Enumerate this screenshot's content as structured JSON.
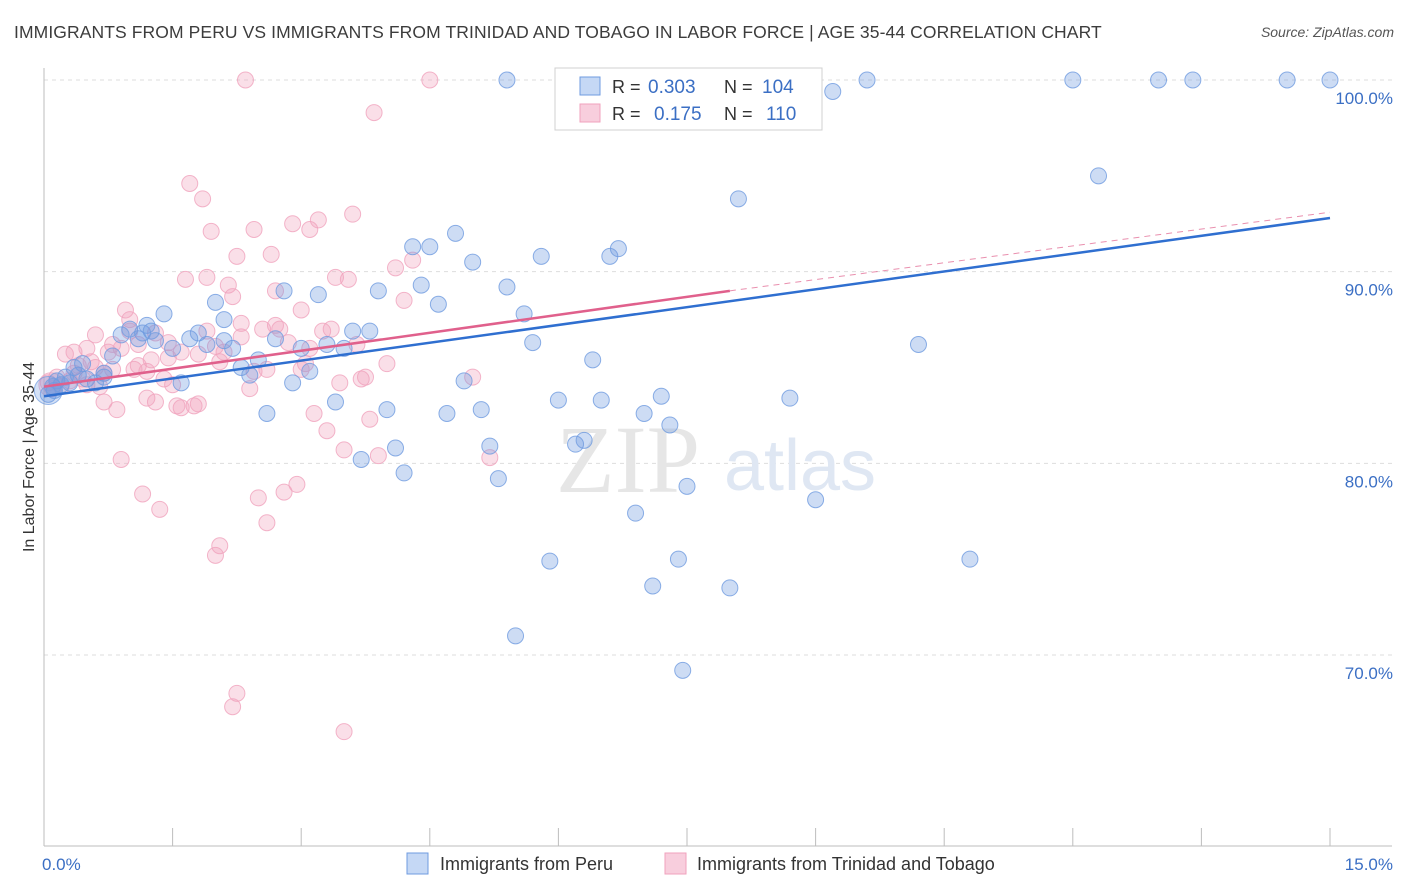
{
  "title": "IMMIGRANTS FROM PERU VS IMMIGRANTS FROM TRINIDAD AND TOBAGO IN LABOR FORCE | AGE 35-44 CORRELATION CHART",
  "source": "Source: ZipAtlas.com",
  "watermark": {
    "zip": "ZIP",
    "atlas": "atlas"
  },
  "colors": {
    "peru": "#6f9be0",
    "peru_line": "#2f6fd0",
    "tt": "#f0a2bd",
    "tt_line": "#e0608c",
    "axis_text": "#3b6fc4",
    "grid": "#dddddd"
  },
  "legend": {
    "rows": [
      {
        "r_label": "R =",
        "r_value": "0.303",
        "n_label": "N =",
        "n_value": "104"
      },
      {
        "r_label": "R =",
        "r_value": "0.175",
        "n_label": "N =",
        "n_value": "110"
      }
    ]
  },
  "chart_data": {
    "type": "scatter",
    "title": "IMMIGRANTS FROM PERU VS IMMIGRANTS FROM TRINIDAD AND TOBAGO IN LABOR FORCE | AGE 35-44 CORRELATION CHART",
    "xlabel": "",
    "ylabel": "In Labor Force | Age 35-44",
    "xlim": [
      0,
      15
    ],
    "ylim": [
      59.5,
      101.5
    ],
    "x_tick_labels": [
      "0.0%",
      "15.0%"
    ],
    "y_tick_labels": [
      "100.0%",
      "90.0%",
      "80.0%",
      "70.0%"
    ],
    "y_ticks": [
      100,
      90,
      80,
      70
    ],
    "grid": true,
    "legend_position": "top-center",
    "series": [
      {
        "name": "Immigrants from Peru",
        "r": 0.303,
        "n": 104,
        "trend": {
          "x": [
            0.0,
            15.0
          ],
          "y": [
            83.5,
            92.8
          ],
          "style": "solid"
        },
        "points": [
          [
            0.05,
            83.6
          ],
          [
            0.1,
            84.0
          ],
          [
            0.12,
            83.8
          ],
          [
            0.15,
            84.3
          ],
          [
            0.2,
            84.1
          ],
          [
            0.25,
            84.5
          ],
          [
            0.3,
            84.2
          ],
          [
            0.35,
            85.0
          ],
          [
            0.4,
            84.6
          ],
          [
            0.45,
            85.2
          ],
          [
            0.5,
            84.4
          ],
          [
            0.6,
            84.2
          ],
          [
            0.7,
            84.7
          ],
          [
            0.8,
            85.6
          ],
          [
            0.9,
            86.7
          ],
          [
            1.0,
            87.0
          ],
          [
            1.1,
            86.5
          ],
          [
            1.15,
            86.8
          ],
          [
            1.2,
            87.2
          ],
          [
            1.3,
            86.4
          ],
          [
            1.4,
            87.8
          ],
          [
            1.5,
            86.0
          ],
          [
            1.6,
            84.2
          ],
          [
            1.7,
            86.5
          ],
          [
            1.8,
            86.8
          ],
          [
            1.9,
            86.2
          ],
          [
            2.0,
            88.4
          ],
          [
            2.1,
            87.5
          ],
          [
            2.2,
            86.0
          ],
          [
            2.3,
            85.0
          ],
          [
            2.4,
            84.6
          ],
          [
            2.5,
            85.4
          ],
          [
            2.6,
            82.6
          ],
          [
            2.7,
            86.5
          ],
          [
            2.8,
            89.0
          ],
          [
            2.9,
            84.2
          ],
          [
            3.0,
            86.0
          ],
          [
            3.1,
            84.8
          ],
          [
            3.2,
            88.8
          ],
          [
            3.3,
            86.2
          ],
          [
            3.4,
            83.2
          ],
          [
            3.5,
            86.0
          ],
          [
            3.6,
            86.9
          ],
          [
            3.7,
            80.2
          ],
          [
            3.8,
            86.9
          ],
          [
            3.9,
            89.0
          ],
          [
            4.0,
            82.8
          ],
          [
            4.1,
            80.8
          ],
          [
            4.2,
            79.5
          ],
          [
            4.3,
            91.3
          ],
          [
            4.4,
            89.3
          ],
          [
            4.5,
            91.3
          ],
          [
            4.6,
            88.3
          ],
          [
            4.7,
            82.6
          ],
          [
            4.8,
            92.0
          ],
          [
            4.9,
            84.3
          ],
          [
            5.0,
            90.5
          ],
          [
            5.1,
            82.8
          ],
          [
            5.2,
            80.9
          ],
          [
            5.3,
            79.2
          ],
          [
            5.4,
            89.2
          ],
          [
            5.5,
            71.0
          ],
          [
            5.6,
            87.8
          ],
          [
            5.7,
            86.3
          ],
          [
            5.8,
            90.8
          ],
          [
            5.9,
            74.9
          ],
          [
            6.0,
            83.3
          ],
          [
            6.1,
            97.9
          ],
          [
            6.2,
            81.0
          ],
          [
            6.3,
            81.2
          ],
          [
            6.4,
            85.4
          ],
          [
            6.5,
            83.3
          ],
          [
            6.6,
            90.8
          ],
          [
            6.7,
            91.2
          ],
          [
            6.9,
            77.4
          ],
          [
            7.0,
            82.6
          ],
          [
            7.1,
            73.6
          ],
          [
            7.2,
            83.5
          ],
          [
            7.3,
            82.0
          ],
          [
            7.4,
            75.0
          ],
          [
            7.45,
            69.2
          ],
          [
            7.5,
            78.8
          ],
          [
            7.6,
            100.0
          ],
          [
            7.8,
            100.0
          ],
          [
            8.0,
            73.5
          ],
          [
            8.1,
            93.8
          ],
          [
            8.3,
            100.0
          ],
          [
            8.5,
            99.5
          ],
          [
            8.7,
            83.4
          ],
          [
            9.0,
            78.1
          ],
          [
            9.2,
            99.4
          ],
          [
            9.6,
            100.0
          ],
          [
            10.2,
            86.2
          ],
          [
            10.8,
            75.0
          ],
          [
            12.0,
            100.0
          ],
          [
            12.3,
            95.0
          ],
          [
            13.0,
            100.0
          ],
          [
            13.4,
            100.0
          ],
          [
            14.5,
            100.0
          ],
          [
            15.0,
            100.0
          ],
          [
            5.4,
            100.0
          ],
          [
            2.1,
            86.4
          ],
          [
            0.7,
            84.5
          ],
          [
            1.25,
            86.9
          ]
        ]
      },
      {
        "name": "Immigrants from Trinidad and Tobago",
        "r": 0.175,
        "n": 110,
        "trend": {
          "x": [
            0.0,
            8.0
          ],
          "y": [
            84.0,
            89.0
          ],
          "style": "solid",
          "extended_to": [
            15.0,
            93.1
          ],
          "extended_style": "dashed"
        },
        "points": [
          [
            0.05,
            84.2
          ],
          [
            0.1,
            83.9
          ],
          [
            0.15,
            84.5
          ],
          [
            0.2,
            84.0
          ],
          [
            0.25,
            85.7
          ],
          [
            0.3,
            84.3
          ],
          [
            0.35,
            84.7
          ],
          [
            0.4,
            85.1
          ],
          [
            0.45,
            84.4
          ],
          [
            0.5,
            86.0
          ],
          [
            0.55,
            85.3
          ],
          [
            0.6,
            86.7
          ],
          [
            0.65,
            84.0
          ],
          [
            0.7,
            83.2
          ],
          [
            0.75,
            85.8
          ],
          [
            0.8,
            84.9
          ],
          [
            0.85,
            82.8
          ],
          [
            0.9,
            80.2
          ],
          [
            0.95,
            88.0
          ],
          [
            1.0,
            87.5
          ],
          [
            1.05,
            84.9
          ],
          [
            1.1,
            86.2
          ],
          [
            1.15,
            78.4
          ],
          [
            1.2,
            83.4
          ],
          [
            1.25,
            85.4
          ],
          [
            1.3,
            83.2
          ],
          [
            1.35,
            77.6
          ],
          [
            1.4,
            84.4
          ],
          [
            1.45,
            86.3
          ],
          [
            1.5,
            84.1
          ],
          [
            1.55,
            83.0
          ],
          [
            1.6,
            82.9
          ],
          [
            1.65,
            89.6
          ],
          [
            1.7,
            94.6
          ],
          [
            1.75,
            83.0
          ],
          [
            1.8,
            85.7
          ],
          [
            1.85,
            93.8
          ],
          [
            1.9,
            89.7
          ],
          [
            1.95,
            92.1
          ],
          [
            2.0,
            75.2
          ],
          [
            2.05,
            75.7
          ],
          [
            2.1,
            85.8
          ],
          [
            2.15,
            89.3
          ],
          [
            2.2,
            88.7
          ],
          [
            2.25,
            90.8
          ],
          [
            2.3,
            87.3
          ],
          [
            2.35,
            100.0
          ],
          [
            2.4,
            83.9
          ],
          [
            2.45,
            92.2
          ],
          [
            2.5,
            78.2
          ],
          [
            2.55,
            87.0
          ],
          [
            2.6,
            76.9
          ],
          [
            2.65,
            90.9
          ],
          [
            2.7,
            89.0
          ],
          [
            2.75,
            87.0
          ],
          [
            2.8,
            78.5
          ],
          [
            2.85,
            86.3
          ],
          [
            2.9,
            92.5
          ],
          [
            2.95,
            78.9
          ],
          [
            3.0,
            88.0
          ],
          [
            3.05,
            85.2
          ],
          [
            3.1,
            92.2
          ],
          [
            3.15,
            82.6
          ],
          [
            3.2,
            92.7
          ],
          [
            3.25,
            86.9
          ],
          [
            3.3,
            81.7
          ],
          [
            3.35,
            87.0
          ],
          [
            3.4,
            89.7
          ],
          [
            3.45,
            84.2
          ],
          [
            3.5,
            80.7
          ],
          [
            3.55,
            89.6
          ],
          [
            3.6,
            93.0
          ],
          [
            3.65,
            86.2
          ],
          [
            3.7,
            84.4
          ],
          [
            3.75,
            84.5
          ],
          [
            3.8,
            82.3
          ],
          [
            3.85,
            98.3
          ],
          [
            3.9,
            80.4
          ],
          [
            4.0,
            85.2
          ],
          [
            4.1,
            90.2
          ],
          [
            4.2,
            88.5
          ],
          [
            4.3,
            90.6
          ],
          [
            4.5,
            100.0
          ],
          [
            5.0,
            84.5
          ],
          [
            5.2,
            80.3
          ],
          [
            2.2,
            67.3
          ],
          [
            2.25,
            68.0
          ],
          [
            3.5,
            66.0
          ],
          [
            1.0,
            86.9
          ],
          [
            0.9,
            86.0
          ],
          [
            1.6,
            85.8
          ],
          [
            2.0,
            86.1
          ],
          [
            2.3,
            86.6
          ],
          [
            2.6,
            84.9
          ],
          [
            3.1,
            86.0
          ],
          [
            1.8,
            83.1
          ],
          [
            0.6,
            85.0
          ],
          [
            0.35,
            85.8
          ],
          [
            1.2,
            84.8
          ],
          [
            2.7,
            87.2
          ],
          [
            1.45,
            85.5
          ],
          [
            0.8,
            86.2
          ],
          [
            2.05,
            85.3
          ],
          [
            3.0,
            84.9
          ],
          [
            1.1,
            85.1
          ],
          [
            0.5,
            84.1
          ],
          [
            2.45,
            84.8
          ],
          [
            1.3,
            86.8
          ],
          [
            0.7,
            84.7
          ],
          [
            1.9,
            86.9
          ]
        ]
      }
    ]
  },
  "bottom_legend": [
    {
      "label": "Immigrants from Peru"
    },
    {
      "label": "Immigrants from Trinidad and Tobago"
    }
  ]
}
